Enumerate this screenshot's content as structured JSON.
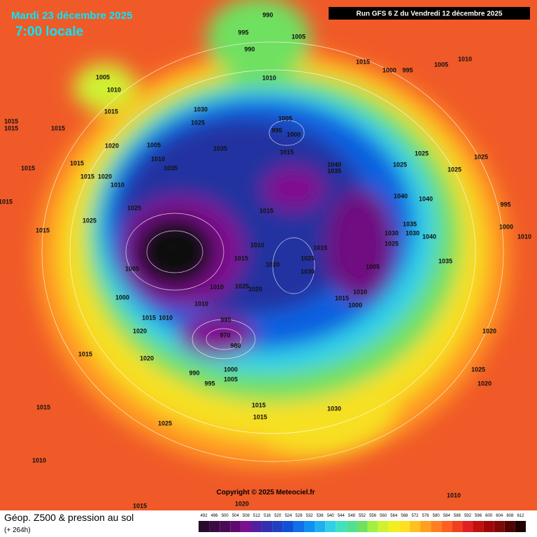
{
  "header": {
    "date": "Mardi 23 décembre 2025",
    "time": "7:00 locale",
    "run": "Run GFS 6 Z du Vendredi 12 décembre 2025"
  },
  "map": {
    "isobars": [
      990,
      995,
      990,
      1005,
      1015,
      1000,
      995,
      1005,
      1010,
      1005,
      1010,
      1015,
      1010,
      1030,
      1025,
      1015,
      1015,
      1015,
      1020,
      1005,
      1010,
      1035,
      1005,
      1000,
      995,
      1015,
      1025,
      1025,
      1015,
      1015,
      1035,
      1040,
      1035,
      1025,
      1025,
      1020,
      1015,
      1010,
      1040,
      1040,
      995,
      1015,
      1025,
      1015,
      1025,
      1035,
      1000,
      1015,
      1030,
      1030,
      1040,
      1010,
      1000,
      1010,
      1015,
      1025,
      995,
      1015,
      1020,
      1025,
      1035,
      1005,
      1030,
      1005,
      1010,
      1025,
      1020,
      1000,
      1010,
      1015,
      1000,
      1010,
      1015,
      1010,
      995,
      1020,
      970,
      980,
      1020,
      1015,
      1020,
      1000,
      1025,
      990,
      1005,
      995,
      1020,
      1015,
      1030,
      1015,
      1015,
      1025,
      1010,
      1010,
      1020,
      1015
    ]
  },
  "footer": {
    "copyright": "Copyright © 2025 Meteociel.fr",
    "field": "Géop. Z500 & pression au sol",
    "lead": "(+ 264h)"
  },
  "colorbar": {
    "ticks": [
      492,
      496,
      500,
      504,
      508,
      512,
      516,
      520,
      524,
      528,
      532,
      536,
      540,
      544,
      548,
      552,
      556,
      560,
      564,
      568,
      572,
      576,
      580,
      584,
      588,
      592,
      596,
      600,
      604,
      608,
      612
    ],
    "colors": [
      "#2a0a2a",
      "#3a0a40",
      "#4a0a55",
      "#600a70",
      "#7a1090",
      "#5020a0",
      "#3030b0",
      "#2040c0",
      "#1050d8",
      "#1070e8",
      "#1090f0",
      "#20b0f0",
      "#30d0e8",
      "#40e0c0",
      "#50e090",
      "#70e060",
      "#a0f040",
      "#d0f030",
      "#f0f020",
      "#ffe020",
      "#ffc020",
      "#ffa020",
      "#ff8020",
      "#ff6020",
      "#f04020",
      "#e02020",
      "#c01010",
      "#a00808",
      "#800808",
      "#500404",
      "#200000"
    ]
  }
}
